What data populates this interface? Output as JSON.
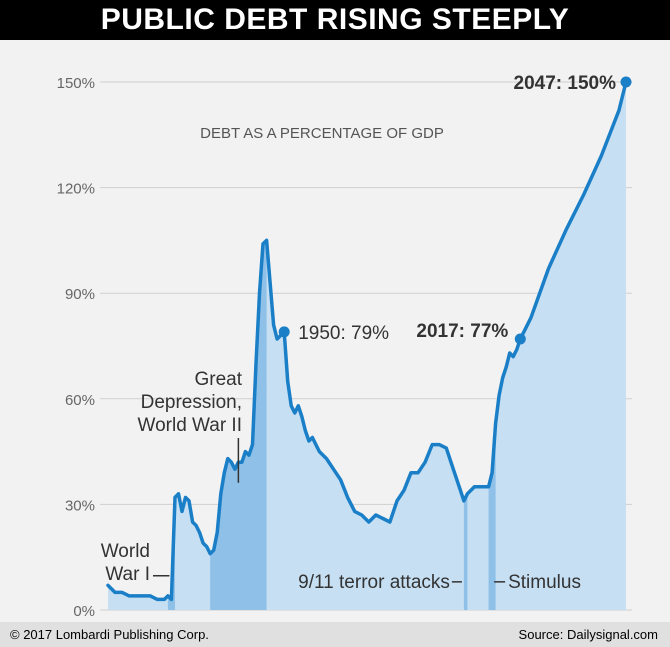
{
  "banner": {
    "title": "PUBLIC DEBT RISING STEEPLY"
  },
  "footer": {
    "copyright": "© 2017 Lombardi Publishing Corp.",
    "source": "Source: Dailysignal.com"
  },
  "chart_data": {
    "type": "area",
    "title": "PUBLIC DEBT RISING STEEPLY",
    "subtitle": "DEBT AS A PERCENTAGE OF GDP",
    "xlabel": "",
    "ylabel": "",
    "xlim": [
      1900,
      2047
    ],
    "ylim": [
      0,
      150
    ],
    "y_ticks": [
      0,
      30,
      60,
      90,
      120,
      150
    ],
    "y_tick_labels": [
      "0%",
      "30%",
      "60%",
      "90%",
      "120%",
      "150%"
    ],
    "grid": true,
    "legend": "none",
    "colors": {
      "line": "#1a7fc7",
      "fill": "#c6dff3",
      "shade": "#8fc0e8",
      "text": "#555555"
    },
    "series": [
      {
        "x": [
          1900,
          1902,
          1904,
          1906,
          1908,
          1910,
          1912,
          1914,
          1915,
          1916,
          1917,
          1918,
          1919,
          1920,
          1921,
          1922,
          1923,
          1924,
          1925,
          1926,
          1927,
          1928,
          1929,
          1930,
          1931,
          1932,
          1933,
          1934,
          1935,
          1936,
          1937,
          1938,
          1939,
          1940,
          1941,
          1942,
          1943,
          1944,
          1945,
          1946,
          1947,
          1948,
          1949,
          1950,
          1951,
          1952,
          1953,
          1954,
          1955,
          1956,
          1957,
          1958,
          1959,
          1960,
          1962,
          1964,
          1966,
          1968,
          1970,
          1972,
          1974,
          1975,
          1976,
          1978,
          1980,
          1982,
          1984,
          1986,
          1988,
          1990,
          1992,
          1994,
          1996,
          1998,
          2000,
          2001,
          2002,
          2004,
          2006,
          2008,
          2009,
          2010,
          2011,
          2012,
          2013,
          2014,
          2015,
          2016,
          2017,
          2020,
          2025,
          2030,
          2035,
          2040,
          2045,
          2047
        ],
        "values": [
          7,
          5,
          5,
          4,
          4,
          4,
          4,
          3,
          3,
          3,
          4,
          3,
          32,
          33,
          28,
          32,
          31,
          25,
          24,
          22,
          19,
          18,
          16,
          17,
          22,
          33,
          39,
          43,
          42,
          40,
          42,
          42,
          45,
          44,
          47,
          70,
          90,
          104,
          105,
          93,
          81,
          77,
          78,
          79,
          65,
          58,
          56,
          58,
          55,
          51,
          48,
          49,
          47,
          45,
          43,
          40,
          37,
          32,
          28,
          27,
          25,
          26,
          27,
          26,
          25,
          31,
          34,
          39,
          39,
          42,
          47,
          47,
          46,
          40,
          34,
          31,
          33,
          35,
          35,
          35,
          39,
          53,
          61,
          66,
          69,
          73,
          72,
          74,
          77,
          83,
          97,
          108,
          118,
          129,
          142,
          150
        ]
      }
    ],
    "shaded_periods": [
      {
        "start": 1917,
        "end": 1919
      },
      {
        "start": 1929,
        "end": 1945
      },
      {
        "start": 2001,
        "end": 2002
      },
      {
        "start": 2008,
        "end": 2010
      }
    ],
    "annotations": [
      {
        "id": "ann-ww1",
        "lines": [
          "World",
          "War I"
        ],
        "x": 1918,
        "y": 10
      },
      {
        "id": "ann-depression",
        "lines": [
          "Great",
          "Depression,",
          "World War II"
        ],
        "x": 1937,
        "y": 35
      },
      {
        "id": "ann-1950",
        "lines": [
          "1950: 79%"
        ],
        "x": 1950,
        "y": 79
      },
      {
        "id": "ann-2017",
        "lines": [
          "2017: 77%"
        ],
        "x": 2017,
        "y": 77
      },
      {
        "id": "ann-2047",
        "lines": [
          "2047: 150%"
        ],
        "x": 2047,
        "y": 150
      },
      {
        "id": "ann-911",
        "lines": [
          "9/11 terror attacks"
        ],
        "x": 2001,
        "y": 8
      },
      {
        "id": "ann-stimulus",
        "lines": [
          "Stimulus"
        ],
        "x": 2009,
        "y": 8
      }
    ]
  }
}
